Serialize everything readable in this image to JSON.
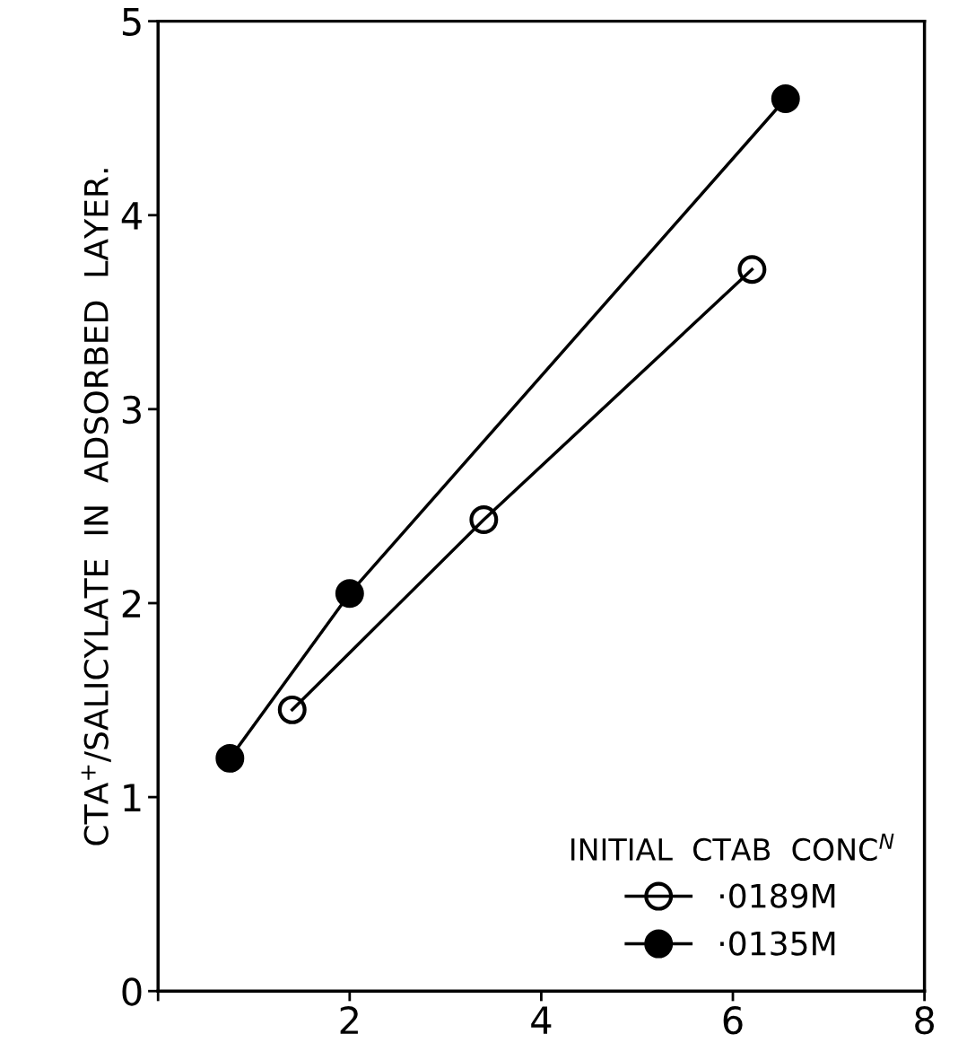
{
  "chart_data": {
    "type": "line",
    "ylabel": "CTA$^{+}$/SALICYLATE  IN  ADSORBED  LAYER.",
    "legend_title": "INITIAL  CTAB  CONC$^{N}$",
    "series": [
      {
        "name": "·0189M",
        "color": "#000000",
        "x": [
          1.4,
          3.4,
          6.2
        ],
        "values": [
          1.45,
          2.43,
          3.72
        ]
      },
      {
        "name": "·0135M",
        "color": "#000000",
        "x": [
          0.75,
          2.0,
          6.55
        ],
        "values": [
          1.2,
          2.05,
          4.6
        ]
      }
    ],
    "xlim": [
      0,
      8
    ],
    "ylim": [
      0,
      5
    ],
    "xticks": [
      {
        "value": 0,
        "label": null
      },
      2,
      4,
      6,
      8
    ],
    "yticks": [
      0,
      1,
      2,
      3,
      4,
      5
    ],
    "legend": "bottom right",
    "grid": false,
    "marker": "circle",
    "line_style": "solid"
  }
}
